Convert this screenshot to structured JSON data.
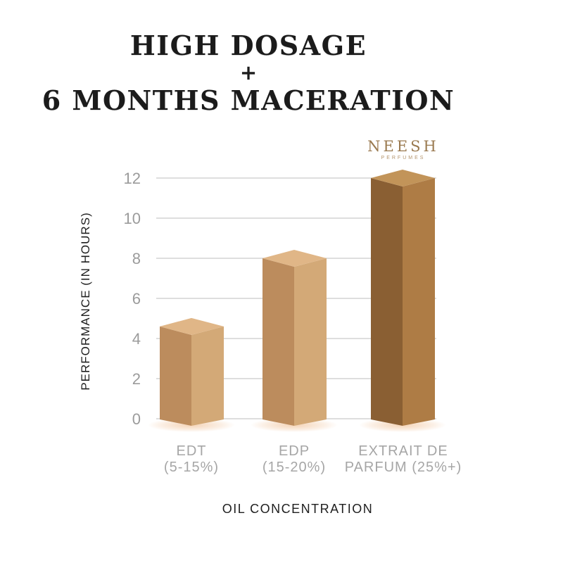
{
  "title": {
    "line1": "HIGH DOSAGE",
    "plus": "+",
    "line2": "6 MONTHS MACERATION"
  },
  "brand": {
    "name": "NEESH",
    "subtitle": "PERFUMES"
  },
  "colors": {
    "brand": "#9a7a50",
    "brand_sub": "#b4946c",
    "grid": "#cbcbcb",
    "tick": "#9b9b9b",
    "cat_label": "#a6a6a6",
    "text_dark": "#1e1e1e",
    "shadow_glow": "#eaa96f"
  },
  "chart_data": {
    "type": "bar",
    "title": "HIGH DOSAGE + 6 MONTHS MACERATION",
    "xlabel": "OIL CONCENTRATION",
    "ylabel": "PERFORMANCE (IN HOURS)",
    "categories": [
      "EDT (5-15%)",
      "EDP (15-20%)",
      "EXTRAIT DE PARFUM (25%+)"
    ],
    "values": [
      4.6,
      8,
      12
    ],
    "yticks": [
      0,
      2,
      4,
      6,
      8,
      10,
      12
    ],
    "ylim": [
      0,
      12
    ],
    "grid": true,
    "legend": "none",
    "style": "3d-bars",
    "bar_colors": [
      {
        "left": "#bc8c5d",
        "right": "#d3a977",
        "top": "#e0b687"
      },
      {
        "left": "#bc8c5d",
        "right": "#d3a977",
        "top": "#e0b687"
      },
      {
        "left": "#8a5f33",
        "right": "#ae7c45",
        "top": "#c29459"
      }
    ],
    "category_labels": [
      {
        "line1": "EDT",
        "line2": "(5-15%)"
      },
      {
        "line1": "EDP",
        "line2": "(15-20%)"
      },
      {
        "line1": "EXTRAIT DE",
        "line2": "PARFUM (25%+)"
      }
    ]
  }
}
